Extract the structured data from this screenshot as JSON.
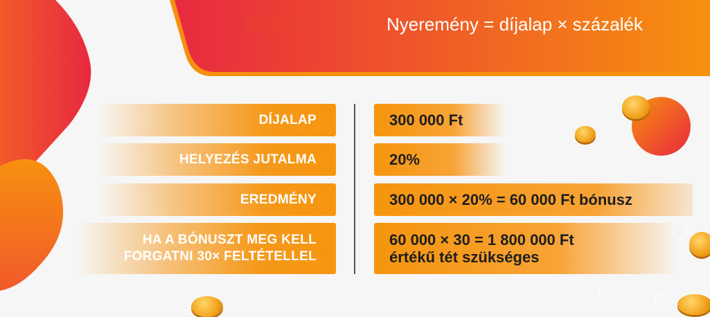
{
  "header": {
    "label": "Képlet:",
    "formula": "Nyeremény = díjalap × százalék"
  },
  "rows": [
    {
      "label": "DÍJALAP",
      "value_lines": [
        "300 000 Ft"
      ]
    },
    {
      "label": "HELYEZÉS JUTALMA",
      "value_lines": [
        "20%"
      ]
    },
    {
      "label": "EREDMÉNY",
      "value_lines": [
        "300 000 × 20% = 60 000 Ft bónusz"
      ]
    },
    {
      "label_lines": [
        "HA A BÓNUSZT MEG KELL",
        "FORGATNI 30× FELTÉTELLEL"
      ],
      "value_lines": [
        "60 000 × 30 = 1 800 000 Ft",
        "értékű tét szükséges"
      ]
    }
  ],
  "colors": {
    "red": "#e8293f",
    "orange": "#f6950e",
    "title_red": "#e8412c"
  }
}
